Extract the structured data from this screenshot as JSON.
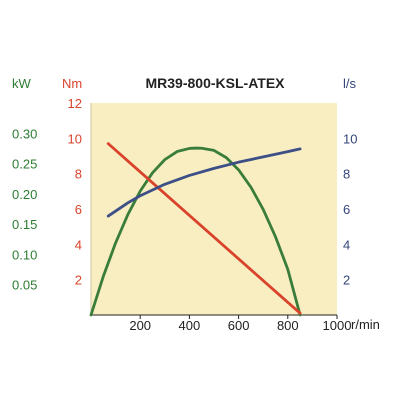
{
  "chart_data": {
    "type": "line",
    "title": "MR39-800-KSL-ATEX",
    "background": "#f8eec2",
    "x": {
      "label": "r/min",
      "range": [
        0,
        1000
      ],
      "ticks": [
        200,
        400,
        600,
        800,
        1000
      ],
      "tick_labels": [
        "200",
        "400",
        "600",
        "800",
        "1000"
      ]
    },
    "y_axes": [
      {
        "id": "power",
        "unit": "kW",
        "color": "#2e7d32",
        "range": [
          0,
          0.35
        ],
        "ticks": [
          0.05,
          0.1,
          0.15,
          0.2,
          0.25,
          0.3
        ],
        "tick_labels": [
          "0.05",
          "0.10",
          "0.15",
          "0.20",
          "0.25",
          "0.30"
        ]
      },
      {
        "id": "torque",
        "unit": "Nm",
        "color": "#d9432b",
        "range": [
          0,
          12
        ],
        "ticks": [
          2,
          4,
          6,
          8,
          10,
          12
        ],
        "tick_labels": [
          "2",
          "4",
          "6",
          "8",
          "10",
          "12"
        ]
      },
      {
        "id": "flow",
        "unit": "l/s",
        "color": "#34457a",
        "range": [
          0,
          12
        ],
        "ticks": [
          2,
          4,
          6,
          8,
          10
        ],
        "tick_labels": [
          "2",
          "4",
          "6",
          "8",
          "10"
        ]
      }
    ],
    "series": [
      {
        "axis": "power",
        "color": "#3a7d3a",
        "x": [
          0,
          50,
          100,
          150,
          200,
          250,
          300,
          350,
          400,
          430,
          450,
          500,
          550,
          600,
          650,
          700,
          750,
          800,
          850
        ],
        "y": [
          0,
          0.0637,
          0.119,
          0.166,
          0.2045,
          0.2347,
          0.2565,
          0.2699,
          0.275,
          0.2756,
          0.2753,
          0.2717,
          0.2598,
          0.2396,
          0.2111,
          0.1742,
          0.129,
          0.0754,
          0.0
        ]
      },
      {
        "axis": "torque",
        "color": "#d9432b",
        "x": [
          70,
          850
        ],
        "y": [
          9.7,
          0.1
        ]
      },
      {
        "axis": "flow",
        "color": "#3c4f86",
        "x": [
          70,
          150,
          200,
          300,
          400,
          500,
          600,
          700,
          800,
          850
        ],
        "y": [
          5.6,
          6.35,
          6.75,
          7.4,
          7.9,
          8.3,
          8.65,
          8.95,
          9.25,
          9.4
        ]
      }
    ],
    "grid": false,
    "legend": "none"
  }
}
